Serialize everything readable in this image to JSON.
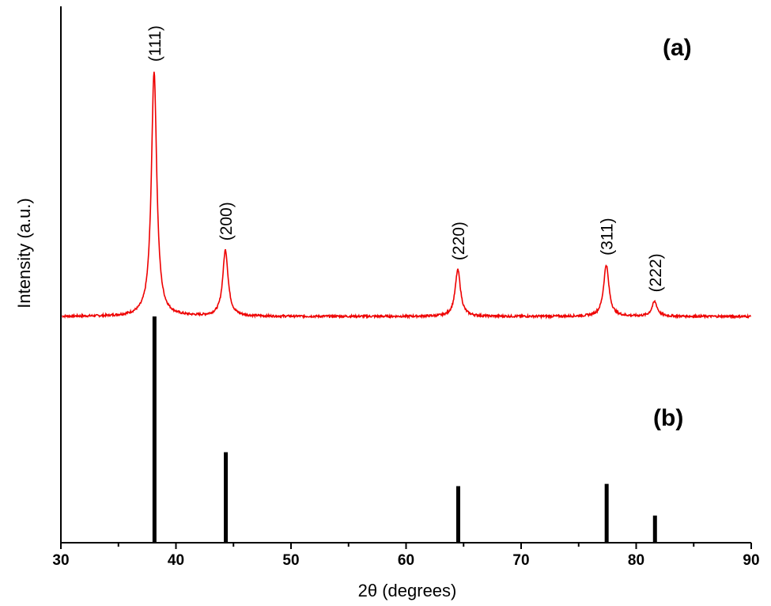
{
  "chart_data": {
    "type": "line",
    "xlabel": "2θ (degrees)",
    "ylabel": "Intensity (a.u.)",
    "xlim": [
      30,
      90
    ],
    "xticks": [
      30,
      40,
      50,
      60,
      70,
      80,
      90
    ],
    "colors": {
      "pattern": "#ee0000",
      "reference": "#000000",
      "axes": "#000000"
    },
    "panel_labels": {
      "a": "(a)",
      "b": "(b)"
    },
    "series": [
      {
        "panel": "a",
        "style": "line",
        "color": "#ee0000",
        "baseline": 0,
        "peaks": [
          {
            "x": 38.1,
            "y": 100,
            "label": "(111)"
          },
          {
            "x": 44.3,
            "y": 27,
            "label": "(200)"
          },
          {
            "x": 64.5,
            "y": 19,
            "label": "(220)"
          },
          {
            "x": 77.4,
            "y": 21,
            "label": "(311)"
          },
          {
            "x": 81.6,
            "y": 6,
            "label": "(222)"
          }
        ]
      },
      {
        "panel": "b",
        "style": "stick",
        "color": "#000000",
        "x": [
          38.1,
          44.3,
          64.5,
          77.4,
          81.6
        ],
        "values": [
          100,
          40,
          25,
          26,
          12
        ]
      }
    ],
    "grid": false,
    "y_tick_labels": false
  }
}
